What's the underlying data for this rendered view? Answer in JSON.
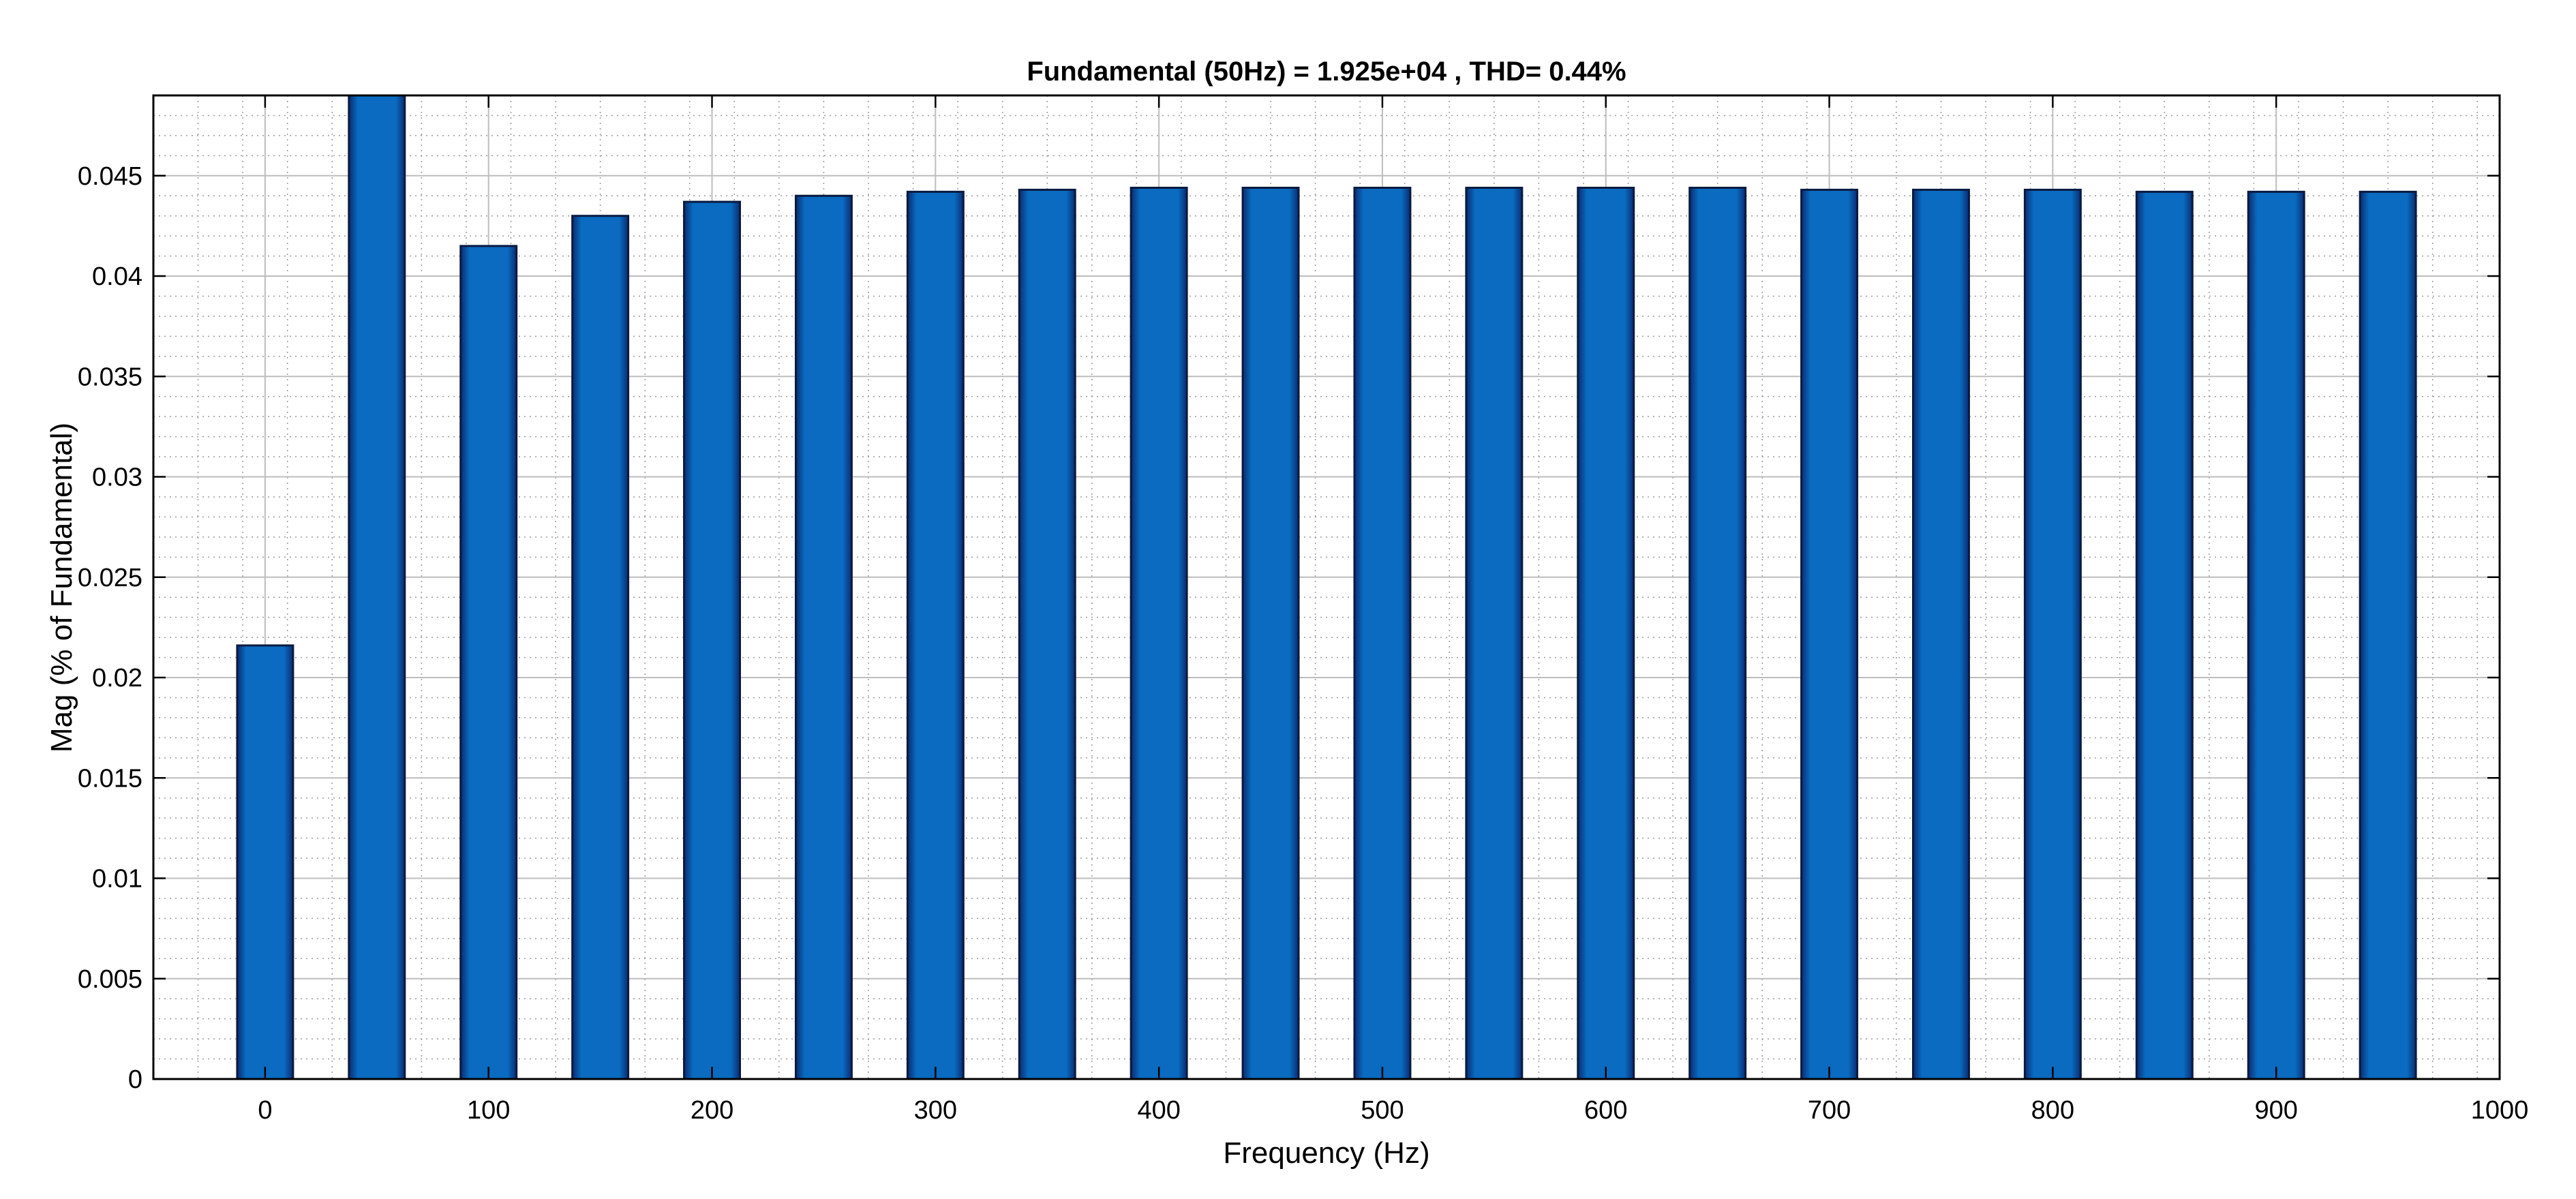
{
  "chart_data": {
    "type": "bar",
    "title": "Fundamental (50Hz) = 1.925e+04 , THD= 0.44%",
    "xlabel": "Frequency (Hz)",
    "ylabel": "Mag (% of Fundamental)",
    "xlim": [
      -50,
      1000
    ],
    "ylim": [
      0,
      0.049
    ],
    "xticks": [
      0,
      100,
      200,
      300,
      400,
      500,
      600,
      700,
      800,
      900,
      1000
    ],
    "xtick_labels": [
      "0",
      "100",
      "200",
      "300",
      "400",
      "500",
      "600",
      "700",
      "800",
      "900",
      "1000"
    ],
    "yticks": [
      0,
      0.005,
      0.01,
      0.015,
      0.02,
      0.025,
      0.03,
      0.035,
      0.04,
      0.045
    ],
    "ytick_labels": [
      "0",
      "0.005",
      "0.01",
      "0.015",
      "0.02",
      "0.025",
      "0.03",
      "0.035",
      "0.04",
      "0.045"
    ],
    "grid": true,
    "minor_grid": true,
    "x": [
      0,
      50,
      100,
      150,
      200,
      250,
      300,
      350,
      400,
      450,
      500,
      550,
      600,
      650,
      700,
      750,
      800,
      850,
      900,
      950
    ],
    "values": [
      0.0216,
      0.049,
      0.0415,
      0.043,
      0.0437,
      0.044,
      0.0442,
      0.0443,
      0.0444,
      0.0444,
      0.0444,
      0.0444,
      0.0444,
      0.0444,
      0.0443,
      0.0443,
      0.0443,
      0.0442,
      0.0442,
      0.0442
    ],
    "colors": {
      "bar": "#0a6bc0",
      "bar_edge": "#0a1a40",
      "grid_major": "#bdbdbd",
      "grid_minor": "#9a9a9a",
      "axis": "#000000"
    }
  }
}
